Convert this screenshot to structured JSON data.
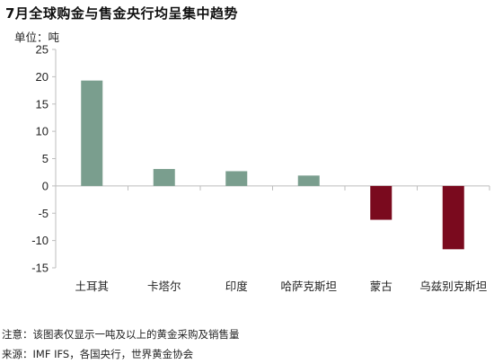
{
  "title": "7月全球购金与售金央行均呈集中趋势",
  "unit_label": "单位：吨",
  "note": "注意：该图表仅显示一吨及以上的黄金采购及销售量",
  "source": "来源：IMF IFS，各国央行，世界黄金协会",
  "colors": {
    "positive": "#7a9e8e",
    "negative": "#7a0a1e",
    "axis": "#bdbdbd"
  },
  "chart_data": {
    "type": "bar",
    "title": "7月全球购金与售金央行均呈集中趋势",
    "xlabel": "",
    "ylabel": "单位：吨",
    "ylim": [
      -15,
      25
    ],
    "yticks": [
      25,
      20,
      15,
      10,
      5,
      0,
      -5,
      -10,
      -15
    ],
    "categories": [
      "土耳其",
      "卡塔尔",
      "印度",
      "哈萨克斯坦",
      "蒙古",
      "乌兹别克斯坦"
    ],
    "values": [
      19.3,
      3.1,
      2.7,
      1.9,
      -6.2,
      -11.6
    ],
    "grid": false,
    "legend": "none"
  }
}
